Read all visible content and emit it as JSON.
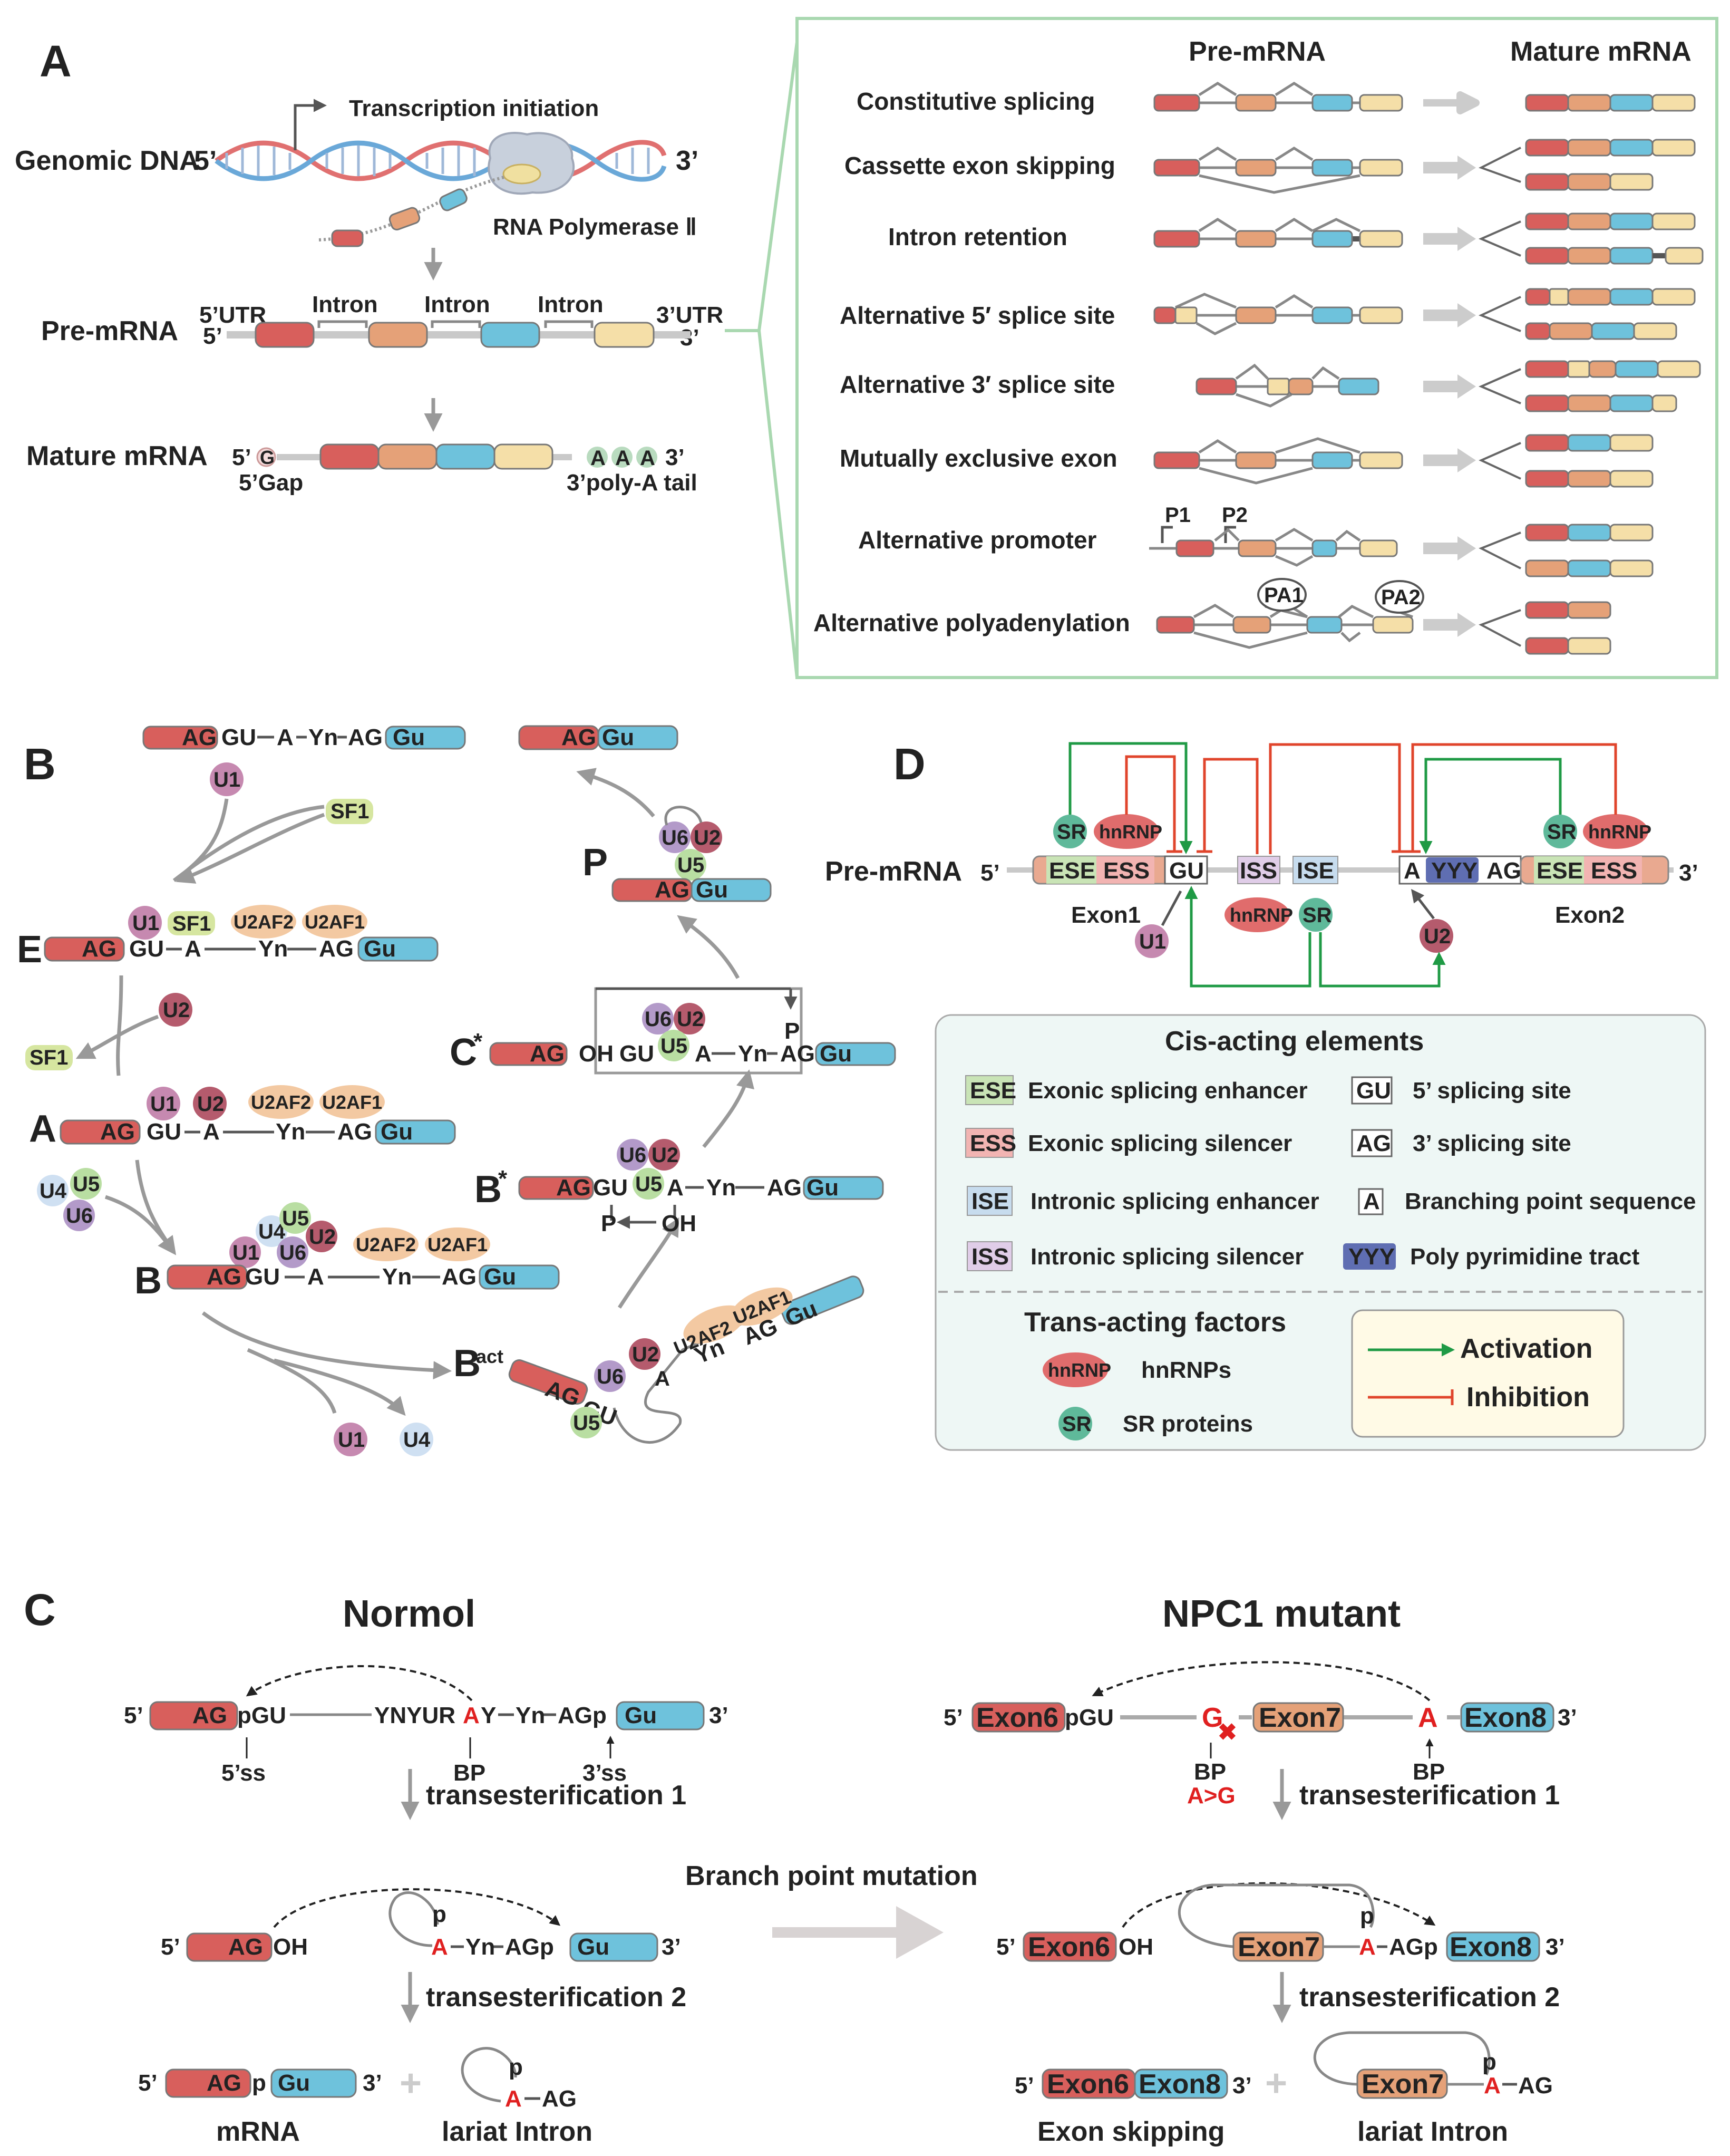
{
  "colors": {
    "exon_red": "#d85f5c",
    "exon_orange": "#e5a178",
    "exon_blue": "#6ec2dc",
    "exon_yellow": "#f5dfa8",
    "activation": "#1f9a45",
    "inhibition": "#e0452c",
    "mutation": "#e02020",
    "panel_green": "#a9d8b0"
  },
  "panel_labels": {
    "a": "A",
    "b": "B",
    "c": "C",
    "d": "D"
  },
  "panel_a": {
    "genomic_dna": "Genomic DNA",
    "five": "5’",
    "three": "3’",
    "transcription_initiation": "Transcription initiation",
    "rna_polymerase": "RNA Polymerase Ⅱ",
    "pre_mrna": "Pre-mRNA",
    "utr5": "5’UTR",
    "utr3": "3’UTR",
    "intron": "Intron",
    "five_plain": "5’",
    "three_plain": "3’",
    "mature_mrna": "Mature mRNA",
    "cap_five": "5’",
    "cap_g": "G",
    "cap_label": "5’Gap",
    "polya_a": "A",
    "polya_three": "3’",
    "polya_label": "3’poly-A tail"
  },
  "splicing_box": {
    "header_pre": "Pre-mRNA",
    "header_mature": "Mature mRNA",
    "events": [
      "Constitutive splicing",
      "Cassette exon skipping",
      "Intron retention",
      "Alternative 5′ splice site",
      "Alternative 3′ splice site",
      "Mutually exclusive exon",
      "Alternative promoter",
      "Alternative polyadenylation"
    ],
    "p1": "P1",
    "p2": "P2",
    "pa1": "PA1",
    "pa2": "PA2"
  },
  "panel_b": {
    "ag": "AG",
    "gu_cap": "Gu",
    "gu": "GU",
    "a": "A",
    "yn": "Yn",
    "oh": "OH",
    "p": "P",
    "u1": "U1",
    "u2": "U2",
    "u4": "U4",
    "u5": "U5",
    "u6": "U6",
    "sf1": "SF1",
    "u2af2": "U2AF2",
    "u2af1": "U2AF1",
    "stage_e": "E",
    "stage_a": "A",
    "stage_b": "B",
    "stage_bact": "B",
    "stage_bact_sup": "act",
    "stage_bstar": "B",
    "stage_cstar": "C",
    "star": "*",
    "stage_p": "P"
  },
  "panel_d": {
    "pre_mrna": "Pre-mRNA",
    "five": "5’",
    "three": "3’",
    "exon1": "Exon1",
    "exon2": "Exon2",
    "ese": "ESE",
    "ess": "ESS",
    "gu": "GU",
    "iss": "ISS",
    "ise": "ISE",
    "a": "A",
    "yyy": "YYY",
    "ag": "AG",
    "sr": "SR",
    "hnrnp": "hnRNP",
    "u1": "U1",
    "u2": "U2",
    "cis_title": "Cis-acting elements",
    "cis_items": [
      {
        "tag": "ESE",
        "text": "Exonic splicing enhancer"
      },
      {
        "tag": "ESS",
        "text": "Exonic splicing silencer"
      },
      {
        "tag": "ISE",
        "text": "Intronic splicing enhancer"
      },
      {
        "tag": "ISS",
        "text": "Intronic splicing silencer"
      },
      {
        "tag": "GU",
        "text": "5’ splicing site"
      },
      {
        "tag": "AG",
        "text": "3’ splicing site"
      },
      {
        "tag": "A",
        "text": "Branching point sequence"
      },
      {
        "tag": "YYY",
        "text": "Poly pyrimidine  tract"
      }
    ],
    "trans_title": "Trans-acting factors",
    "hnrnps": "hnRNPs",
    "sr_proteins": "SR proteins",
    "activation": "Activation",
    "inhibition": "Inhibition"
  },
  "panel_c": {
    "normal_title": "Normol",
    "mutant_title": "NPC1 mutant",
    "five": "5’",
    "three": "3’",
    "ag": "AG",
    "pgu": "pGU",
    "seq_pre": "YNYUR",
    "seq_a": "A",
    "seq_post": "Y",
    "yn": "Yn",
    "agp": "AGp",
    "gu": "Gu",
    "ss5": "5’ss",
    "bp": "BP",
    "ss3": "3’ss",
    "trans1": "transesterification 1",
    "trans2": "transesterification 2",
    "oh": "OH",
    "p": "p",
    "a": "A",
    "ag_tail": "AG",
    "mrna_p": "p",
    "mrna": "mRNA",
    "lariat": "lariat Intron",
    "plus": "+",
    "bp_mutation": "Branch point mutation",
    "exon6": "Exon6",
    "exon7": "Exon7",
    "exon8": "Exon8",
    "g": "G",
    "x": "✖",
    "bp_change": "A>G",
    "exon_skipping": "Exon skipping"
  }
}
